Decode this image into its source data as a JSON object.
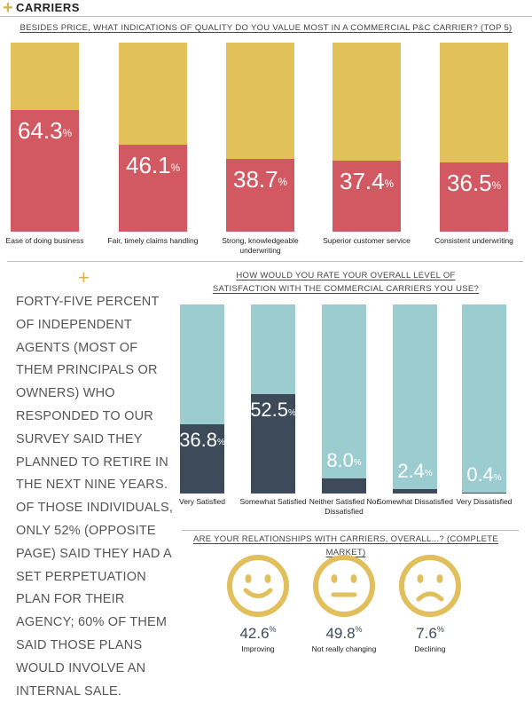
{
  "header": {
    "plus": "+",
    "title": "CARRIERS"
  },
  "colors": {
    "gold": "#e2c05a",
    "red": "#d25962",
    "teal": "#9bcdd0",
    "navy": "#3c4a59",
    "face": "#e0bf5c"
  },
  "sidebar": {
    "plus": "+",
    "text": "FORTY-FIVE PERCENT OF INDEPENDENT AGENTS (MOST OF THEM PRINCIPALS OR OWNERS) WHO RESPONDED TO OUR SURVEY SAID THEY PLANNED TO RETIRE IN THE NEXT NINE YEARS. OF THOSE INDIVIDUALS, ONLY 52% (OPPOSITE PAGE) SAID THEY HAD A SET PERPETUATION PLAN FOR THEIR AGENCY; 60% OF THEM SAID THOSE PLANS WOULD INVOLVE AN INTERNAL SALE."
  },
  "chart_data": [
    {
      "type": "bar",
      "title": "BESIDES PRICE, WHAT INDICATIONS OF QUALITY DO YOU VALUE MOST IN A COMMERCIAL P&C CARRIER? (TOP 5)",
      "categories": [
        "Ease of doing business",
        "Fair, timely claims handling",
        "Strong, knowledgeable underwriting",
        "Superior customer service",
        "Consistent underwriting"
      ],
      "values": [
        64.3,
        46.1,
        38.7,
        37.4,
        36.5
      ],
      "value_labels": [
        "64.3",
        "46.1",
        "38.7",
        "37.4",
        "36.5"
      ],
      "unit": "%",
      "ylim": [
        0,
        100
      ]
    },
    {
      "type": "bar",
      "title_lines": [
        "HOW WOULD YOU RATE YOUR OVERALL LEVEL OF",
        "SATISFACTION WITH THE COMMERCIAL CARRIERS YOU USE?"
      ],
      "categories": [
        "Very Satisfied",
        "Somewhat Satisfied",
        "Neither Satisfied Nor Dissatisfied",
        "Somewhat Dissatisfied",
        "Very Dissatisfied"
      ],
      "values": [
        36.8,
        52.5,
        8.0,
        2.4,
        0.4
      ],
      "value_labels": [
        "36.8",
        "52.5",
        "8.0",
        "2.4",
        "0.4"
      ],
      "unit": "%",
      "ylim": [
        0,
        100
      ]
    },
    {
      "type": "table",
      "title": "ARE YOUR RELATIONSHIPS WITH CARRIERS, OVERALL...? (COMPLETE MARKET)",
      "categories": [
        "Improving",
        "Not really changing",
        "Declining"
      ],
      "values": [
        42.6,
        49.8,
        7.6
      ],
      "value_labels": [
        "42.6",
        "49.8",
        "7.6"
      ],
      "unit": "%",
      "icons": [
        "smile-face-icon",
        "neutral-face-icon",
        "frown-face-icon"
      ]
    }
  ]
}
